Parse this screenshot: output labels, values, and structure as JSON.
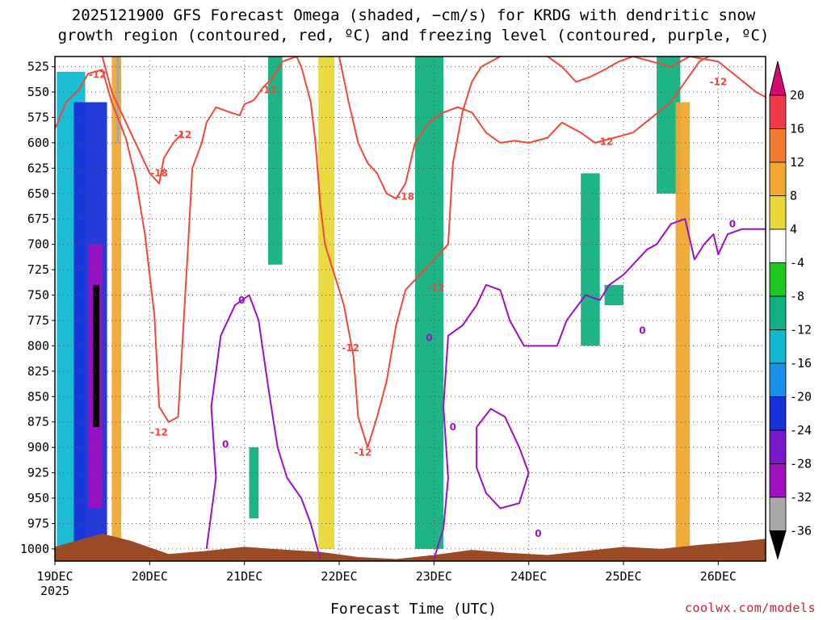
{
  "chart_data": {
    "type": "heatmap",
    "title_line1": "2025121900 GFS Forecast Omega (shaded, −cm/s) for KRDG with dendritic snow",
    "title_line2": "growth region (contoured, red, ºC) and freezing level (contoured, purple, ºC)",
    "xlabel": "Forecast Time (UTC)",
    "credit": "coolwx.com/models",
    "x_ticks": [
      "19DEC",
      "20DEC",
      "21DEC",
      "22DEC",
      "23DEC",
      "24DEC",
      "25DEC",
      "26DEC"
    ],
    "x_year": "2025",
    "y_ticks": [
      525,
      550,
      575,
      600,
      625,
      650,
      675,
      700,
      725,
      750,
      775,
      800,
      825,
      850,
      875,
      900,
      925,
      950,
      975,
      1000
    ],
    "ylim": [
      1012,
      515
    ],
    "xlim_days": [
      0,
      7.5
    ],
    "grid": true,
    "colorbar": {
      "labels": [
        20,
        16,
        12,
        8,
        4,
        -4,
        -8,
        -12,
        -16,
        -20,
        -24,
        -28,
        -32,
        -36
      ],
      "colors": [
        "#d40a72",
        "#f03a4a",
        "#f07a2e",
        "#f0a830",
        "#e8d838",
        "#ffffff",
        "#1ec81e",
        "#12b080",
        "#10b8d0",
        "#1890e8",
        "#1830d8",
        "#7818c8",
        "#a010c0",
        "#a8a8a8",
        "#000000"
      ]
    },
    "omega_bands": [
      {
        "x0": 0.02,
        "x1": 0.32,
        "p0": 530,
        "p1": 1000,
        "value": -12
      },
      {
        "x0": 0.2,
        "x1": 0.55,
        "p0": 560,
        "p1": 1000,
        "value": -20
      },
      {
        "x0": 0.35,
        "x1": 0.5,
        "p0": 700,
        "p1": 960,
        "value": -28
      },
      {
        "x0": 0.4,
        "x1": 0.47,
        "p0": 740,
        "p1": 880,
        "value": -36
      },
      {
        "x0": 0.6,
        "x1": 0.7,
        "p0": 515,
        "p1": 990,
        "value": 12
      },
      {
        "x0": 0.65,
        "x1": 0.68,
        "p0": 515,
        "p1": 600,
        "value": -32
      },
      {
        "x0": 0.75,
        "x1": 1.1,
        "p0": 600,
        "p1": 990,
        "value": 4
      },
      {
        "x0": 1.15,
        "x1": 1.3,
        "p0": 640,
        "p1": 940,
        "value": 4
      },
      {
        "x0": 1.45,
        "x1": 1.75,
        "p0": 520,
        "p1": 880,
        "value": 4
      },
      {
        "x0": 2.05,
        "x1": 2.15,
        "p0": 900,
        "p1": 970,
        "value": -8
      },
      {
        "x0": 2.25,
        "x1": 2.4,
        "p0": 515,
        "p1": 720,
        "value": -8
      },
      {
        "x0": 2.6,
        "x1": 2.7,
        "p0": 560,
        "p1": 980,
        "value": 4
      },
      {
        "x0": 2.78,
        "x1": 2.95,
        "p0": 515,
        "p1": 1000,
        "value": 8
      },
      {
        "x0": 3.15,
        "x1": 3.3,
        "p0": 515,
        "p1": 720,
        "value": 4
      },
      {
        "x0": 3.5,
        "x1": 3.7,
        "p0": 515,
        "p1": 620,
        "value": 4
      },
      {
        "x0": 3.8,
        "x1": 4.1,
        "p0": 515,
        "p1": 1000,
        "value": -8
      },
      {
        "x0": 4.45,
        "x1": 4.55,
        "p0": 570,
        "p1": 650,
        "value": 4
      },
      {
        "x0": 5.0,
        "x1": 5.1,
        "p0": 570,
        "p1": 650,
        "value": 4
      },
      {
        "x0": 5.55,
        "x1": 5.75,
        "p0": 630,
        "p1": 800,
        "value": -8
      },
      {
        "x0": 5.8,
        "x1": 6.0,
        "p0": 740,
        "p1": 760,
        "value": -8
      },
      {
        "x0": 6.35,
        "x1": 6.6,
        "p0": 515,
        "p1": 650,
        "value": -8
      },
      {
        "x0": 6.55,
        "x1": 6.7,
        "p0": 560,
        "p1": 1000,
        "value": 12
      }
    ],
    "series": [
      {
        "name": "-12",
        "style": "red",
        "label_positions": [
          {
            "x": 0.45,
            "p": 533,
            "text": "-12"
          },
          {
            "x": 2.25,
            "p": 548,
            "text": "-12"
          },
          {
            "x": 1.35,
            "p": 592,
            "text": "-12"
          },
          {
            "x": 1.1,
            "p": 885,
            "text": "-12"
          },
          {
            "x": 3.12,
            "p": 802,
            "text": "-12"
          },
          {
            "x": 3.25,
            "p": 905,
            "text": "-12"
          },
          {
            "x": 4.02,
            "p": 743,
            "text": "-12"
          },
          {
            "x": 5.8,
            "p": 599,
            "text": "-12"
          },
          {
            "x": 7.0,
            "p": 540,
            "text": "-12"
          }
        ],
        "points": [
          [
            0.0,
            586
          ],
          [
            0.12,
            560
          ],
          [
            0.25,
            548
          ],
          [
            0.35,
            532
          ],
          [
            0.5,
            528
          ],
          [
            0.6,
            560
          ],
          [
            0.75,
            596
          ],
          [
            0.85,
            634
          ],
          [
            0.95,
            690
          ],
          [
            1.05,
            770
          ],
          [
            1.1,
            860
          ],
          [
            1.2,
            875
          ],
          [
            1.3,
            870
          ],
          [
            1.4,
            710
          ],
          [
            1.45,
            625
          ],
          [
            1.55,
            600
          ],
          [
            1.6,
            580
          ],
          [
            1.7,
            565
          ],
          [
            1.85,
            570
          ],
          [
            1.95,
            573
          ],
          [
            2.0,
            562
          ],
          [
            2.1,
            558
          ],
          [
            2.2,
            545
          ],
          [
            2.3,
            536
          ],
          [
            2.4,
            520
          ],
          [
            2.55,
            515
          ],
          [
            2.6,
            525
          ],
          [
            2.7,
            560
          ],
          [
            2.75,
            600
          ],
          [
            2.8,
            660
          ],
          [
            2.85,
            700
          ],
          [
            2.95,
            730
          ],
          [
            3.05,
            760
          ],
          [
            3.15,
            810
          ],
          [
            3.2,
            870
          ],
          [
            3.3,
            900
          ],
          [
            3.4,
            870
          ],
          [
            3.5,
            835
          ],
          [
            3.6,
            780
          ],
          [
            3.7,
            745
          ],
          [
            3.8,
            735
          ],
          [
            3.9,
            725
          ],
          [
            4.0,
            715
          ],
          [
            4.15,
            700
          ],
          [
            4.2,
            620
          ],
          [
            4.3,
            570
          ],
          [
            4.4,
            540
          ],
          [
            4.5,
            525
          ],
          [
            4.7,
            515
          ]
        ]
      },
      {
        "name": "-18",
        "style": "red",
        "label_positions": [
          {
            "x": 1.1,
            "p": 630,
            "text": "-18"
          },
          {
            "x": 3.7,
            "p": 653,
            "text": "-18"
          }
        ],
        "points": [
          [
            0.5,
            515
          ],
          [
            0.6,
            550
          ],
          [
            0.75,
            580
          ],
          [
            0.9,
            610
          ],
          [
            1.0,
            630
          ],
          [
            1.1,
            640
          ],
          [
            1.15,
            615
          ],
          [
            1.25,
            600
          ],
          [
            1.35,
            590
          ]
        ]
      },
      {
        "name": "-18b",
        "style": "red",
        "label_positions": [],
        "points": [
          [
            3.0,
            515
          ],
          [
            3.1,
            560
          ],
          [
            3.2,
            600
          ],
          [
            3.3,
            620
          ],
          [
            3.4,
            630
          ],
          [
            3.5,
            650
          ],
          [
            3.6,
            655
          ],
          [
            3.7,
            640
          ],
          [
            3.8,
            600
          ],
          [
            3.95,
            580
          ],
          [
            4.1,
            570
          ],
          [
            4.25,
            565
          ],
          [
            4.4,
            570
          ],
          [
            4.55,
            590
          ],
          [
            4.7,
            600
          ],
          [
            4.85,
            598
          ],
          [
            5.0,
            600
          ],
          [
            5.2,
            595
          ],
          [
            5.35,
            580
          ],
          [
            5.55,
            590
          ],
          [
            5.7,
            600
          ],
          [
            5.9,
            595
          ],
          [
            6.1,
            590
          ],
          [
            6.3,
            575
          ],
          [
            6.5,
            560
          ],
          [
            6.65,
            540
          ],
          [
            6.8,
            520
          ],
          [
            6.9,
            515
          ]
        ]
      },
      {
        "name": "-12b",
        "style": "red",
        "label_positions": [],
        "points": [
          [
            5.2,
            515
          ],
          [
            5.35,
            525
          ],
          [
            5.5,
            540
          ],
          [
            5.65,
            535
          ],
          [
            5.8,
            528
          ],
          [
            5.95,
            520
          ],
          [
            6.1,
            515
          ],
          [
            6.5,
            525
          ],
          [
            6.7,
            515
          ],
          [
            7.0,
            520
          ],
          [
            7.2,
            535
          ],
          [
            7.4,
            550
          ],
          [
            7.5,
            555
          ]
        ]
      },
      {
        "name": "0",
        "style": "purple",
        "label_positions": [
          {
            "x": 1.97,
            "p": 755,
            "text": "0"
          },
          {
            "x": 1.8,
            "p": 897,
            "text": "0"
          },
          {
            "x": 3.95,
            "p": 792,
            "text": "0"
          },
          {
            "x": 4.2,
            "p": 880,
            "text": "0"
          },
          {
            "x": 5.1,
            "p": 985,
            "text": "0"
          },
          {
            "x": 6.2,
            "p": 785,
            "text": "0"
          },
          {
            "x": 7.15,
            "p": 680,
            "text": "0"
          }
        ],
        "points": [
          [
            1.6,
            1000
          ],
          [
            1.7,
            930
          ],
          [
            1.65,
            860
          ],
          [
            1.75,
            790
          ],
          [
            1.9,
            760
          ],
          [
            2.05,
            750
          ],
          [
            2.15,
            775
          ],
          [
            2.25,
            840
          ],
          [
            2.35,
            900
          ],
          [
            2.45,
            930
          ],
          [
            2.6,
            950
          ],
          [
            2.7,
            975
          ],
          [
            2.8,
            1010
          ]
        ]
      },
      {
        "name": "0b",
        "style": "purple",
        "label_positions": [],
        "points": [
          [
            4.0,
            1010
          ],
          [
            4.1,
            980
          ],
          [
            4.15,
            930
          ],
          [
            4.1,
            860
          ],
          [
            4.15,
            790
          ],
          [
            4.3,
            780
          ],
          [
            4.45,
            760
          ],
          [
            4.55,
            740
          ],
          [
            4.7,
            745
          ],
          [
            4.8,
            775
          ],
          [
            4.95,
            800
          ],
          [
            5.15,
            800
          ],
          [
            5.3,
            800
          ],
          [
            5.4,
            775
          ],
          [
            5.6,
            750
          ],
          [
            5.75,
            755
          ],
          [
            5.85,
            740
          ],
          [
            6.0,
            730
          ],
          [
            6.1,
            720
          ],
          [
            6.25,
            705
          ],
          [
            6.35,
            700
          ],
          [
            6.5,
            680
          ],
          [
            6.65,
            675
          ],
          [
            6.75,
            715
          ],
          [
            6.85,
            700
          ],
          [
            6.95,
            690
          ],
          [
            7.0,
            710
          ],
          [
            7.1,
            690
          ],
          [
            7.25,
            685
          ],
          [
            7.5,
            685
          ]
        ]
      },
      {
        "name": "0c",
        "style": "purple",
        "label_positions": [],
        "points": [
          [
            4.45,
            880
          ],
          [
            4.6,
            862
          ],
          [
            4.75,
            870
          ],
          [
            4.9,
            900
          ],
          [
            5.0,
            925
          ],
          [
            4.9,
            955
          ],
          [
            4.7,
            960
          ],
          [
            4.55,
            945
          ],
          [
            4.45,
            920
          ],
          [
            4.45,
            880
          ]
        ]
      }
    ]
  },
  "colors": {
    "ground": "#9a4a24",
    "red_contour": "#f0483a",
    "purple_contour": "#9a10c8",
    "grid": "#555555",
    "credit": "#d11b3a"
  }
}
